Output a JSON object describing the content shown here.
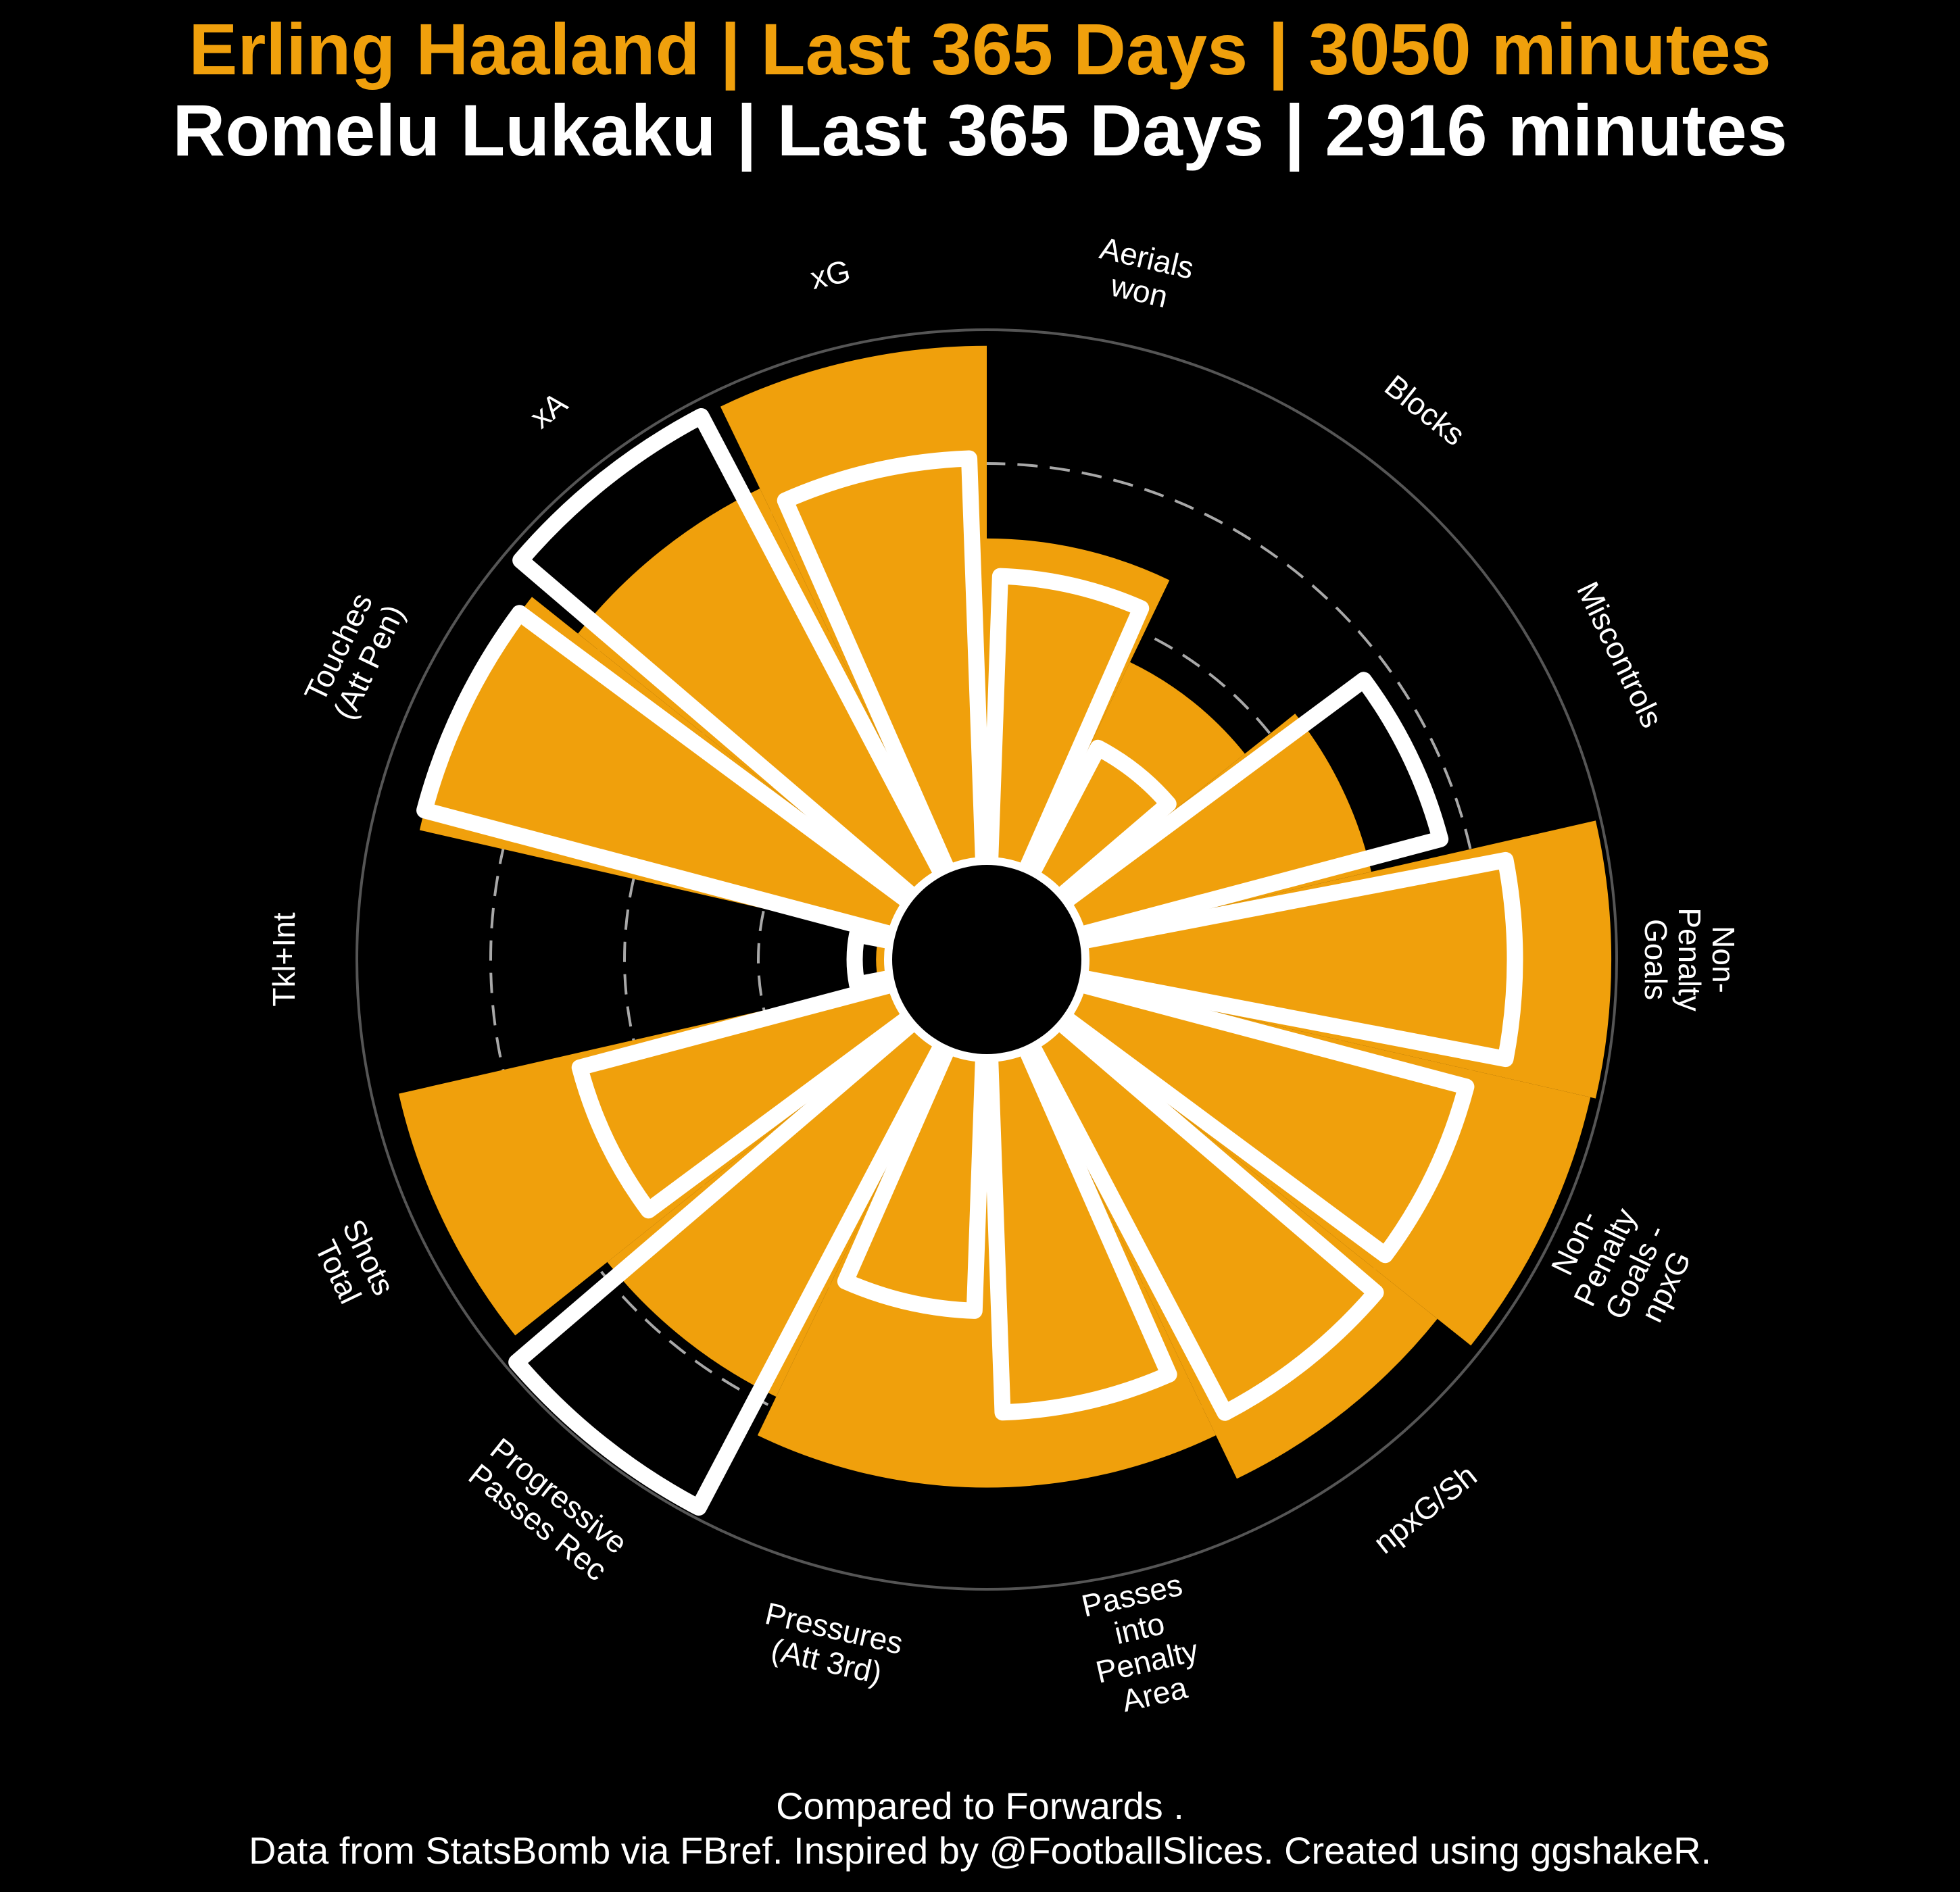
{
  "header": {
    "title_player1": "Erling Haaland | Last 365 Days | 3050 minutes",
    "title_player2": "Romelu Lukaku | Last 365 Days | 2916 minutes"
  },
  "footer": {
    "comparison": "Compared to Forwards .",
    "credits": "Data from StatsBomb via FBref. Inspired by @FootballSlices. Created using ggshakeR."
  },
  "colors": {
    "background": "#000000",
    "player1_fill": "#F0A00C",
    "player2_outline": "#FFFFFF",
    "grid": "#A8A8A8",
    "outer_ring": "#555555"
  },
  "chart_data": {
    "type": "polar-bar",
    "categories": [
      [
        "Aerials",
        "won"
      ],
      [
        "Blocks"
      ],
      [
        "Miscontrols"
      ],
      [
        "Non-",
        "Penalty",
        "Goals"
      ],
      [
        "Non-",
        "Penalty",
        "Goals -",
        "npxG"
      ],
      [
        "npxG/Sh"
      ],
      [
        "Passes",
        "into",
        "Penalty",
        "Area"
      ],
      [
        "Pressures",
        "(Att 3rd)"
      ],
      [
        "Progressive",
        "Passes Rec"
      ],
      [
        "Shots",
        "Total"
      ],
      [
        "Tkl+Int"
      ],
      [
        "Touches",
        "(Att Pen)"
      ],
      [
        "xA"
      ],
      [
        "xG"
      ]
    ],
    "rmax": 100,
    "gridlines": [
      25,
      50,
      75
    ],
    "series": [
      {
        "name": "Erling Haaland",
        "style": "fill",
        "values": [
          61,
          44,
          56,
          99,
          98,
          90,
          81,
          81,
          73,
          95,
          3,
          91,
          80,
          97
        ]
      },
      {
        "name": "Romelu Lukaku",
        "style": "outline",
        "values": [
          54,
          27,
          70,
          81,
          75,
          78,
          67,
          48,
          98,
          61,
          7,
          91,
          97,
          76
        ]
      }
    ]
  }
}
